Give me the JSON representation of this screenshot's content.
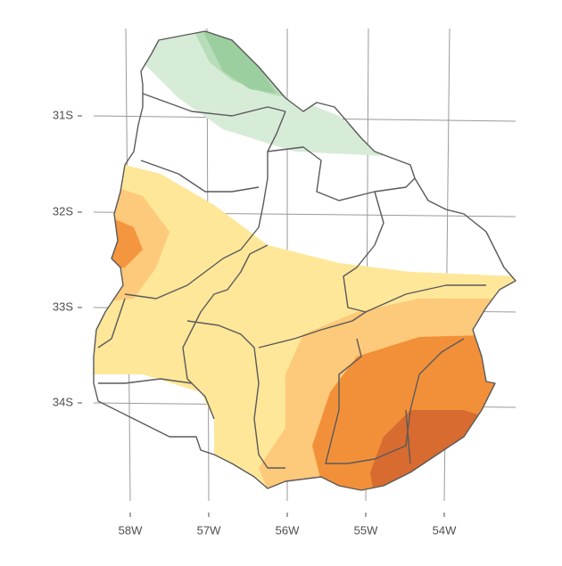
{
  "map": {
    "lat_labels": [
      "31S",
      "32S",
      "33S",
      "34S"
    ],
    "lon_labels": [
      "58W",
      "57W",
      "56W",
      "55W",
      "54W"
    ]
  }
}
